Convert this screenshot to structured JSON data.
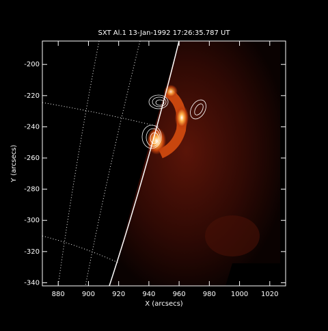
{
  "chart_data": {
    "type": "image",
    "title": "SXT Al.1 13-Jan-1992 17:26:35.787 UT",
    "xlabel": "X (arcsecs)",
    "ylabel": "Y (arcsecs)",
    "xlim": [
      869.5,
      1030.5
    ],
    "ylim": [
      -342,
      -185
    ],
    "xticks": [
      880,
      900,
      920,
      940,
      960,
      980,
      1000,
      1020
    ],
    "yticks": [
      -200,
      -220,
      -240,
      -260,
      -280,
      -300,
      -320,
      -340
    ]
  }
}
